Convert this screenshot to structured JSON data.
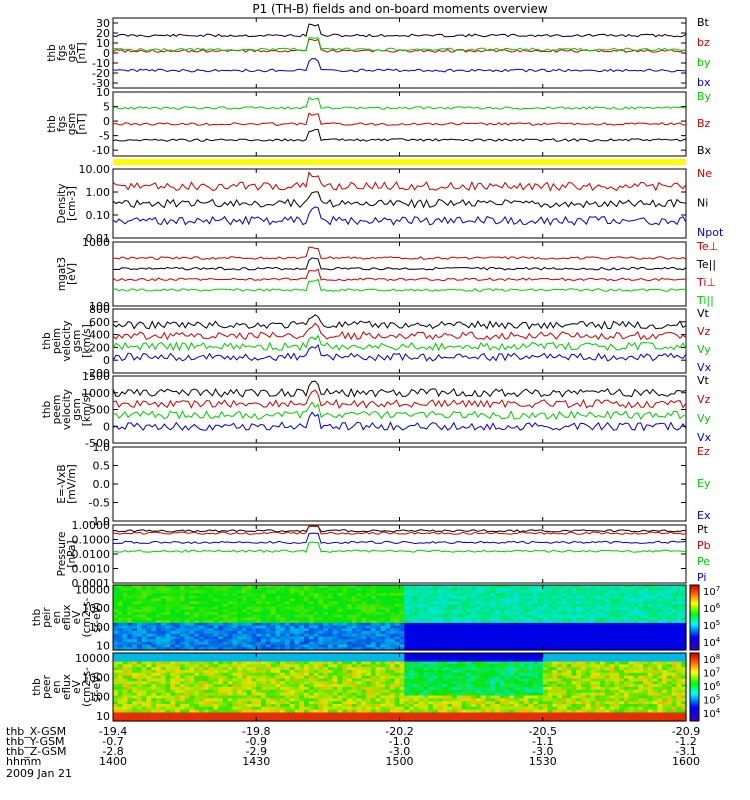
{
  "title": "P1 (TH-B) fields and on-board moments overview",
  "date": "2009 Jan 21",
  "panels": [
    {
      "ylabel": [
        "thb",
        "fgs",
        "gse",
        "[nT]"
      ],
      "ylim": [
        -35,
        35
      ],
      "yticks": [
        30,
        20,
        10,
        0,
        -10,
        -20,
        -30
      ],
      "legend": [
        {
          "label": "Bt",
          "color": "#000000"
        },
        {
          "label": "bz",
          "color": "#cc0000"
        },
        {
          "label": "by",
          "color": "#00cc00"
        },
        {
          "label": "bx",
          "color": "#0000cc"
        }
      ]
    },
    {
      "ylabel": [
        "thb",
        "fgs",
        "gsm",
        "[nT]"
      ],
      "ylim": [
        -12,
        10
      ],
      "yticks": [
        10,
        5,
        0,
        -5,
        -10
      ],
      "legend": [
        {
          "label": "By",
          "color": "#00cc00"
        },
        {
          "label": "Bz",
          "color": "#cc0000"
        },
        {
          "label": "Bx",
          "color": "#000000"
        }
      ]
    },
    {
      "ylabel": [
        "Density",
        "[cm-3]"
      ],
      "ylim_log": [
        0.01,
        10.0
      ],
      "yticks": [
        "10.00",
        "1.00",
        "0.10",
        "0.01"
      ],
      "legend": [
        {
          "label": "Ne",
          "color": "#cc0000"
        },
        {
          "label": "Ni",
          "color": "#000000"
        },
        {
          "label": "Npot",
          "color": "#0000cc"
        }
      ]
    },
    {
      "ylabel": [
        "mgat3",
        "[eV]"
      ],
      "ylim_log": [
        10,
        10000
      ],
      "yticks": [
        "1000",
        "100"
      ],
      "legend": [
        {
          "label": "Te⊥",
          "color": "#cc0000"
        },
        {
          "label": "Te||",
          "color": "#000000"
        },
        {
          "label": "Ti⊥",
          "color": "#cc0000"
        },
        {
          "label": "Ti||",
          "color": "#00cc00"
        }
      ]
    },
    {
      "ylabel": [
        "thb",
        "peim",
        "velocity",
        "gsm",
        "[km/s]"
      ],
      "ylim": [
        -200,
        800
      ],
      "yticks": [
        800,
        600,
        400,
        200,
        0,
        -200
      ],
      "legend": [
        {
          "label": "Vt",
          "color": "#000000"
        },
        {
          "label": "Vz",
          "color": "#cc0000"
        },
        {
          "label": "Vy",
          "color": "#00cc00"
        },
        {
          "label": "Vx",
          "color": "#0000cc"
        }
      ]
    },
    {
      "ylabel": [
        "thb",
        "peem",
        "velocity",
        "gsm",
        "[km/s]"
      ],
      "ylim": [
        -500,
        1500
      ],
      "yticks": [
        1500,
        1000,
        500,
        0,
        -500
      ],
      "legend": [
        {
          "label": "Vt",
          "color": "#000000"
        },
        {
          "label": "Vz",
          "color": "#cc0000"
        },
        {
          "label": "Vy",
          "color": "#00cc00"
        },
        {
          "label": "Vx",
          "color": "#0000cc"
        }
      ]
    },
    {
      "ylabel": [
        "E=-VxB",
        "[mV/m]"
      ],
      "ylim": [
        -1.0,
        1.0
      ],
      "yticks": [
        "1.0",
        "0.5",
        "0.0",
        "-0.5",
        "-1.0"
      ],
      "legend": [
        {
          "label": "Ez",
          "color": "#cc0000"
        },
        {
          "label": "Ey",
          "color": "#00cc00"
        },
        {
          "label": "Ex",
          "color": "#0000cc"
        }
      ]
    },
    {
      "ylabel": [
        "Pressure",
        "[nPa]"
      ],
      "ylim_log": [
        0.0001,
        1.0
      ],
      "yticks": [
        "1.0000",
        "0.1000",
        "0.0100",
        "0.0010",
        "0.0001"
      ],
      "legend": [
        {
          "label": "Pt",
          "color": "#000000"
        },
        {
          "label": "Pb",
          "color": "#cc0000"
        },
        {
          "label": "Pe",
          "color": "#00cc00"
        },
        {
          "label": "Pi",
          "color": "#0000cc"
        }
      ]
    },
    {
      "ylabel": [
        "thb",
        "peir",
        "en",
        "eflux",
        "eV",
        "(cm2-s-",
        "sr-eV)"
      ],
      "yticks": [
        "10000",
        "1000",
        "100",
        "10"
      ],
      "colorbar": {
        "labels": [
          "10^7",
          "10^6",
          "10^5",
          "10^4"
        ]
      }
    },
    {
      "ylabel": [
        "thb",
        "peer",
        "en",
        "eflux",
        "eV",
        "(cm2-s-",
        "sr-eV)"
      ],
      "yticks": [
        "10000",
        "1000",
        "100",
        "10"
      ],
      "colorbar": {
        "labels": [
          "10^8",
          "10^7",
          "10^6",
          "10^5",
          "10^4"
        ]
      }
    }
  ],
  "xaxis": {
    "rows": [
      {
        "label": "thb_X-GSM",
        "values": [
          "-19.4",
          "-19.8",
          "-20.2",
          "-20.5",
          "-20.9"
        ]
      },
      {
        "label": "thb_Y-GSM",
        "values": [
          "-0.7",
          "-0.9",
          "-1.0",
          "-1.1",
          "-1.2"
        ]
      },
      {
        "label": "thb_Z-GSM",
        "values": [
          "-2.8",
          "-2.9",
          "-3.0",
          "-3.0",
          "-3.1"
        ]
      },
      {
        "label": "hhmm",
        "values": [
          "1400",
          "1430",
          "1500",
          "1530",
          "1600"
        ]
      }
    ]
  },
  "chart_data": {
    "type": "line",
    "title": "P1 (TH-B) fields and on-board moments overview",
    "x": [
      "1400",
      "1430",
      "1500",
      "1530",
      "1600"
    ],
    "xlabel": "hhmm",
    "series_summary": [
      {
        "panel": "fgs gse",
        "name": "Bt",
        "values": [
          18,
          22,
          25,
          26,
          24
        ]
      },
      {
        "panel": "fgs gse",
        "name": "bz",
        "values": [
          2,
          0,
          1,
          0,
          1
        ]
      },
      {
        "panel": "fgs gse",
        "name": "by",
        "values": [
          3,
          1,
          1,
          1,
          0
        ]
      },
      {
        "panel": "fgs gse",
        "name": "bx",
        "values": [
          -18,
          -14,
          -17,
          -19,
          -20
        ]
      },
      {
        "panel": "fgs gsm",
        "name": "By",
        "values": [
          2,
          3,
          0,
          1,
          3
        ]
      },
      {
        "panel": "fgs gsm",
        "name": "Bz",
        "values": [
          -1,
          0,
          -1,
          -1,
          -2
        ]
      },
      {
        "panel": "fgs gsm",
        "name": "Bx",
        "values": [
          0,
          -2,
          -2,
          -6,
          -2
        ]
      },
      {
        "panel": "Density",
        "name": "Ne",
        "values": [
          0.6,
          0.8,
          0.7,
          0.5,
          0.5
        ]
      },
      {
        "panel": "Density",
        "name": "Ni",
        "values": [
          0.12,
          0.15,
          0.25,
          0.08,
          0.08
        ]
      },
      {
        "panel": "Density",
        "name": "Npot",
        "values": [
          0.12,
          0.15,
          0.3,
          0.02,
          0.03
        ]
      },
      {
        "panel": "Pressure",
        "name": "Pt",
        "values": [
          0.35,
          0.3,
          0.35,
          0.35,
          0.3
        ]
      },
      {
        "panel": "Pressure",
        "name": "Pb",
        "values": [
          0.2,
          0.2,
          0.3,
          0.3,
          0.25
        ]
      },
      {
        "panel": "Pressure",
        "name": "Pe",
        "values": [
          0.01,
          0.01,
          0.004,
          0.001,
          0.005
        ]
      },
      {
        "panel": "Pressure",
        "name": "Pi",
        "values": [
          0.03,
          0.04,
          0.03,
          0.002,
          0.01
        ]
      }
    ]
  }
}
